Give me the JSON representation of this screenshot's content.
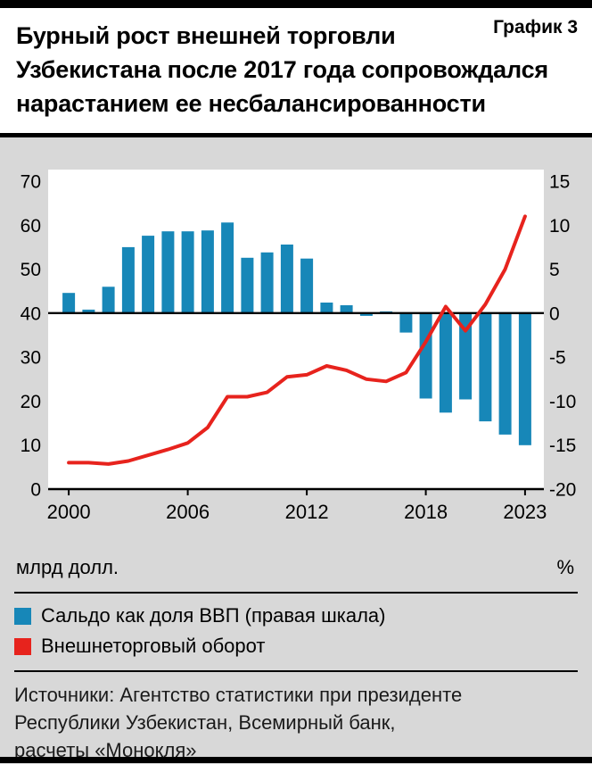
{
  "header": {
    "title_lines": [
      "Бурный рост внешней торговли",
      "Узбекистана после 2017 года сопровождался",
      "нарастанием ее несбалансированности"
    ],
    "chart_label": "График 3"
  },
  "chart_data": {
    "type": "bar",
    "categories": [
      2000,
      2001,
      2002,
      2003,
      2004,
      2005,
      2006,
      2007,
      2008,
      2009,
      2010,
      2011,
      2012,
      2013,
      2014,
      2015,
      2016,
      2017,
      2018,
      2019,
      2020,
      2021,
      2022,
      2023
    ],
    "series": [
      {
        "name": "Сальдо как доля ВВП (правая шкала)",
        "type": "bar",
        "axis": "right",
        "color": "#1787b8",
        "values": [
          2.3,
          0.4,
          3.0,
          7.5,
          8.8,
          9.3,
          9.3,
          9.4,
          10.3,
          6.3,
          6.9,
          7.8,
          6.2,
          1.2,
          0.9,
          -0.3,
          0.2,
          -2.2,
          -9.7,
          -11.3,
          -9.8,
          -12.3,
          -13.8,
          -15.0
        ]
      },
      {
        "name": "Внешнеторговый оборот",
        "type": "line",
        "axis": "left",
        "color": "#e7231d",
        "values": [
          6.0,
          6.0,
          5.7,
          6.4,
          7.7,
          9.0,
          10.5,
          14.0,
          21.0,
          21.0,
          22.0,
          25.5,
          26.0,
          28.0,
          27.0,
          25.0,
          24.5,
          26.5,
          33.5,
          41.5,
          36.0,
          42.0,
          50.0,
          62.0
        ]
      }
    ],
    "left_axis": {
      "label": "млрд долл.",
      "min": 0,
      "max": 70,
      "ticks": [
        0,
        10,
        20,
        30,
        40,
        50,
        60,
        70
      ]
    },
    "right_axis": {
      "label": "%",
      "min": -20,
      "max": 15,
      "ticks": [
        -20,
        -15,
        -10,
        -5,
        0,
        5,
        10,
        15
      ]
    },
    "x_tick_labels": [
      2000,
      2006,
      2012,
      2018,
      2023
    ],
    "grid": false,
    "legend_position": "bottom"
  },
  "legend": {
    "items": [
      {
        "label": "Сальдо как доля ВВП (правая шкала)",
        "color": "#1787b8"
      },
      {
        "label": "Внешнеторговый оборот",
        "color": "#e7231d"
      }
    ]
  },
  "footer": {
    "sources_lines": [
      "Источники: Агентство статистики при президенте",
      "Республики Узбекистан, Всемирный банк,",
      "расчеты «Монокля»"
    ]
  }
}
